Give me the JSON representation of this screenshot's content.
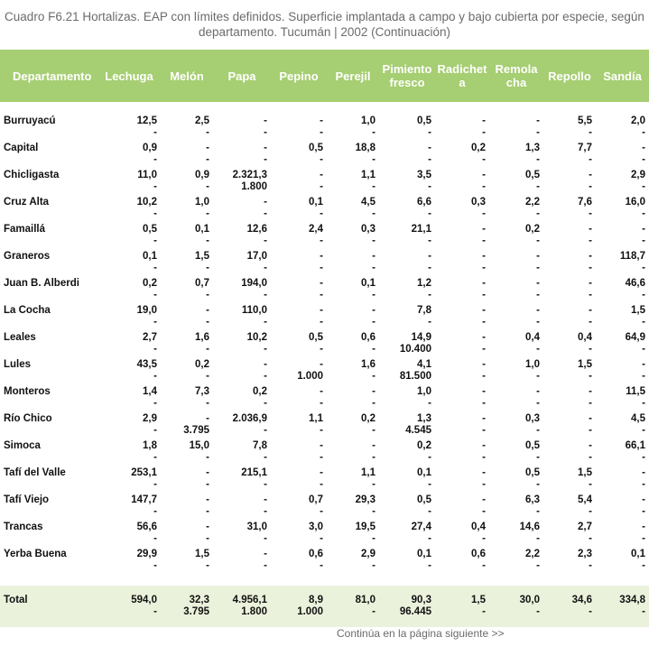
{
  "title": {
    "line1": "Cuadro F6.21 Hortalizas. EAP con límites definidos. Superficie implantada a campo y bajo cubierta por especie, según",
    "line2": "departamento. Tucumán | 2002 (Continuación)"
  },
  "columns": [
    {
      "l1": "Departamento",
      "l2": ""
    },
    {
      "l1": "Lechuga",
      "l2": ""
    },
    {
      "l1": "Melón",
      "l2": ""
    },
    {
      "l1": "Papa",
      "l2": ""
    },
    {
      "l1": "Pepino",
      "l2": ""
    },
    {
      "l1": "Perejil",
      "l2": ""
    },
    {
      "l1": "Pimiento",
      "l2": "fresco"
    },
    {
      "l1": "Radichet",
      "l2": "a"
    },
    {
      "l1": "Remola",
      "l2": "cha"
    },
    {
      "l1": "Repollo",
      "l2": ""
    },
    {
      "l1": "Sandía",
      "l2": ""
    }
  ],
  "rows": [
    {
      "name": "Burruyacú",
      "a": [
        "12,5",
        "2,5",
        "-",
        "-",
        "1,0",
        "0,5",
        "-",
        "-",
        "5,5",
        "2,0"
      ],
      "b": [
        "-",
        "-",
        "-",
        "-",
        "-",
        "-",
        "-",
        "-",
        "-",
        "-"
      ]
    },
    {
      "name": "Capital",
      "a": [
        "0,9",
        "-",
        "-",
        "0,5",
        "18,8",
        "-",
        "0,2",
        "1,3",
        "7,7",
        "-"
      ],
      "b": [
        "-",
        "-",
        "-",
        "-",
        "-",
        "-",
        "-",
        "-",
        "-",
        "-"
      ]
    },
    {
      "name": "Chicligasta",
      "a": [
        "11,0",
        "0,9",
        "2.321,3",
        "-",
        "1,1",
        "3,5",
        "-",
        "0,5",
        "-",
        "2,9"
      ],
      "b": [
        "-",
        "-",
        "1.800",
        "-",
        "-",
        "-",
        "-",
        "-",
        "-",
        "-"
      ]
    },
    {
      "name": "Cruz Alta",
      "a": [
        "10,2",
        "1,0",
        "-",
        "0,1",
        "4,5",
        "6,6",
        "0,3",
        "2,2",
        "7,6",
        "16,0"
      ],
      "b": [
        "-",
        "-",
        "-",
        "-",
        "-",
        "-",
        "-",
        "-",
        "-",
        "-"
      ]
    },
    {
      "name": "Famaillá",
      "a": [
        "0,5",
        "0,1",
        "12,6",
        "2,4",
        "0,3",
        "21,1",
        "-",
        "0,2",
        "-",
        "-"
      ],
      "b": [
        "-",
        "-",
        "-",
        "-",
        "-",
        "-",
        "-",
        "-",
        "-",
        "-"
      ]
    },
    {
      "name": "Graneros",
      "a": [
        "0,1",
        "1,5",
        "17,0",
        "-",
        "-",
        "-",
        "-",
        "-",
        "-",
        "118,7"
      ],
      "b": [
        "-",
        "-",
        "-",
        "-",
        "-",
        "-",
        "-",
        "-",
        "-",
        "-"
      ]
    },
    {
      "name": "Juan B. Alberdi",
      "a": [
        "0,2",
        "0,7",
        "194,0",
        "-",
        "0,1",
        "1,2",
        "-",
        "-",
        "-",
        "46,6"
      ],
      "b": [
        "-",
        "-",
        "-",
        "-",
        "-",
        "-",
        "-",
        "-",
        "-",
        "-"
      ]
    },
    {
      "name": "La Cocha",
      "a": [
        "19,0",
        "-",
        "110,0",
        "-",
        "-",
        "7,8",
        "-",
        "-",
        "-",
        "1,5"
      ],
      "b": [
        "-",
        "-",
        "-",
        "-",
        "-",
        "-",
        "-",
        "-",
        "-",
        "-"
      ]
    },
    {
      "name": "Leales",
      "a": [
        "2,7",
        "1,6",
        "10,2",
        "0,5",
        "0,6",
        "14,9",
        "-",
        "0,4",
        "0,4",
        "64,9"
      ],
      "b": [
        "-",
        "-",
        "-",
        "-",
        "-",
        "10.400",
        "-",
        "-",
        "-",
        "-"
      ]
    },
    {
      "name": "Lules",
      "a": [
        "43,5",
        "0,2",
        "-",
        "-",
        "1,6",
        "4,1",
        "-",
        "1,0",
        "1,5",
        "-"
      ],
      "b": [
        "-",
        "-",
        "-",
        "1.000",
        "-",
        "81.500",
        "-",
        "-",
        "-",
        "-"
      ]
    },
    {
      "name": "Monteros",
      "a": [
        "1,4",
        "7,3",
        "0,2",
        "-",
        "-",
        "1,0",
        "-",
        "-",
        "-",
        "11,5"
      ],
      "b": [
        "-",
        "-",
        "-",
        "-",
        "-",
        "-",
        "-",
        "-",
        "-",
        "-"
      ]
    },
    {
      "name": "Río Chico",
      "a": [
        "2,9",
        "-",
        "2.036,9",
        "1,1",
        "0,2",
        "1,3",
        "-",
        "0,3",
        "-",
        "4,5"
      ],
      "b": [
        "-",
        "3.795",
        "-",
        "-",
        "-",
        "4.545",
        "-",
        "-",
        "-",
        "-"
      ]
    },
    {
      "name": "Simoca",
      "a": [
        "1,8",
        "15,0",
        "7,8",
        "-",
        "-",
        "0,2",
        "-",
        "0,5",
        "-",
        "66,1"
      ],
      "b": [
        "-",
        "-",
        "-",
        "-",
        "-",
        "-",
        "-",
        "-",
        "-",
        "-"
      ]
    },
    {
      "name": "Tafí del Valle",
      "a": [
        "253,1",
        "-",
        "215,1",
        "-",
        "1,1",
        "0,1",
        "-",
        "0,5",
        "1,5",
        "-"
      ],
      "b": [
        "-",
        "-",
        "-",
        "-",
        "-",
        "-",
        "-",
        "-",
        "-",
        "-"
      ]
    },
    {
      "name": "Tafí Viejo",
      "a": [
        "147,7",
        "-",
        "-",
        "0,7",
        "29,3",
        "0,5",
        "-",
        "6,3",
        "5,4",
        "-"
      ],
      "b": [
        "-",
        "-",
        "-",
        "-",
        "-",
        "-",
        "-",
        "-",
        "-",
        "-"
      ]
    },
    {
      "name": "Trancas",
      "a": [
        "56,6",
        "-",
        "31,0",
        "3,0",
        "19,5",
        "27,4",
        "0,4",
        "14,6",
        "2,7",
        "-"
      ],
      "b": [
        "-",
        "-",
        "-",
        "-",
        "-",
        "-",
        "-",
        "-",
        "-",
        "-"
      ]
    },
    {
      "name": "Yerba Buena",
      "a": [
        "29,9",
        "1,5",
        "-",
        "0,6",
        "2,9",
        "0,1",
        "0,6",
        "2,2",
        "2,3",
        "0,1"
      ],
      "b": [
        "-",
        "-",
        "-",
        "-",
        "-",
        "-",
        "-",
        "-",
        "-",
        "-"
      ]
    }
  ],
  "total": {
    "name": "Total",
    "a": [
      "594,0",
      "32,3",
      "4.956,1",
      "8,9",
      "81,0",
      "90,3",
      "1,5",
      "30,0",
      "34,6",
      "334,8"
    ],
    "b": [
      "-",
      "3.795",
      "1.800",
      "1.000",
      "-",
      "96.445",
      "-",
      "-",
      "-",
      "-"
    ]
  },
  "footer": "Continúa en la página siguiente >>",
  "colors": {
    "header_bg": "#a6ce72",
    "total_bg": "#ebf2dc",
    "title_text": "#6b6b6b"
  }
}
